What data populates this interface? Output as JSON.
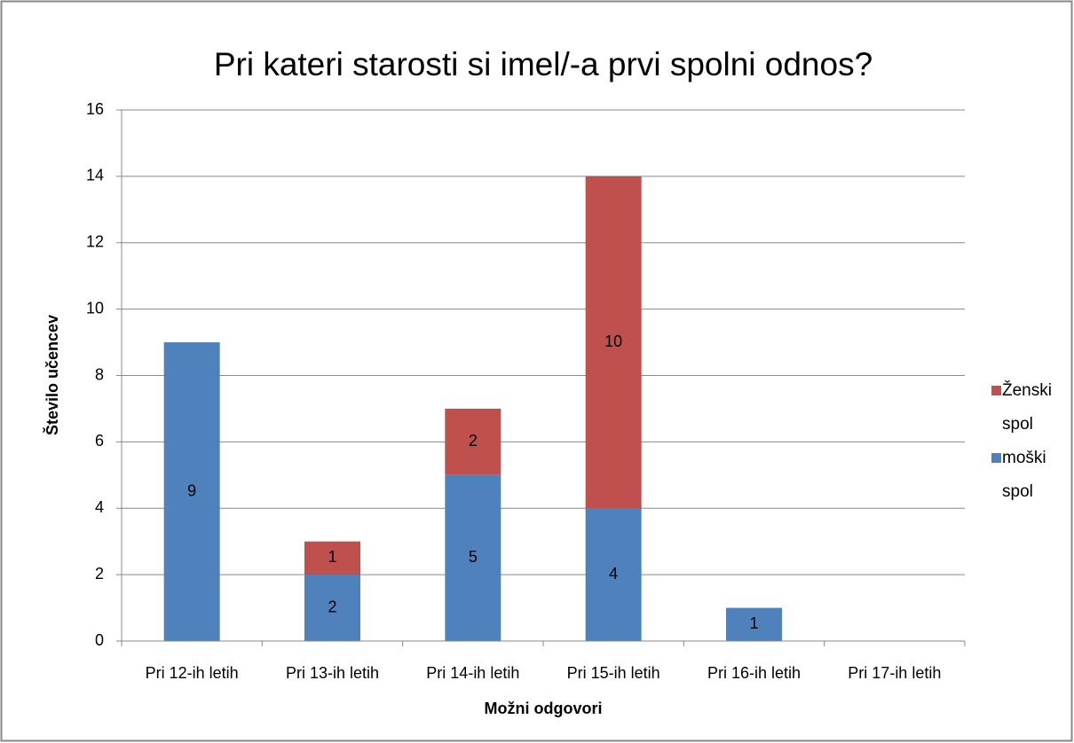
{
  "chart_data": {
    "type": "stacked_bar",
    "title": "Pri kateri starosti si imel/-a prvi spolni odnos?",
    "x_label": "Možni odgovori",
    "y_label": "Število učencev",
    "categories": [
      "Pri 12-ih letih",
      "Pri 13-ih letih",
      "Pri 14-ih letih",
      "Pri 15-ih letih",
      "Pri 16-ih letih",
      "Pri 17-ih letih"
    ],
    "series": [
      {
        "name": "moški spol",
        "color": "#4f81bd",
        "values": [
          9,
          2,
          5,
          4,
          1,
          0
        ]
      },
      {
        "name": "Ženski spol",
        "color": "#c0504d",
        "values": [
          0,
          1,
          2,
          10,
          0,
          0
        ]
      }
    ],
    "ylim": [
      0,
      16
    ],
    "yticks": [
      0,
      2,
      4,
      6,
      8,
      10,
      12,
      14,
      16
    ],
    "grid": true,
    "legend": "right"
  }
}
